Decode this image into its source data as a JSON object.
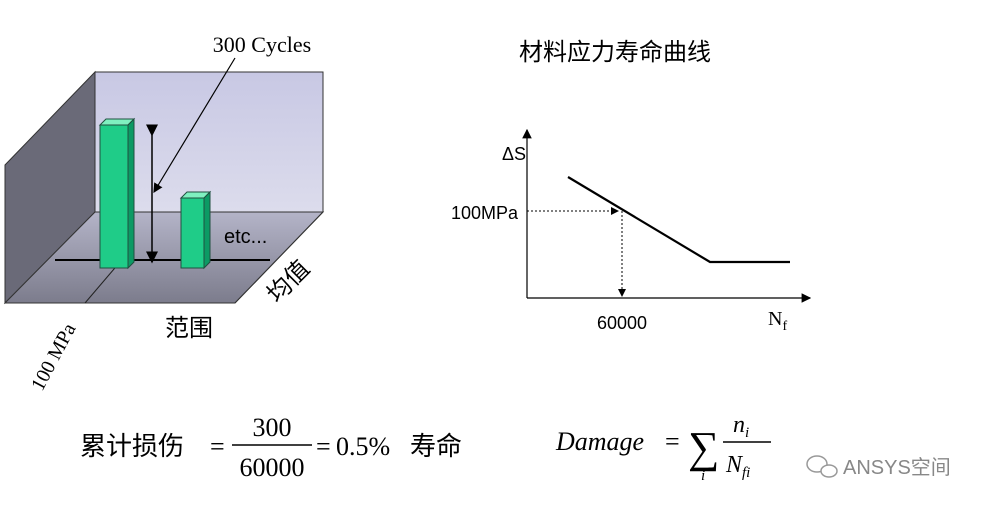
{
  "histogram3d": {
    "annotation": "300 Cycles",
    "etc": "etc...",
    "axis_range": "100 MPa",
    "label_range": "范围",
    "label_mean": "均值"
  },
  "sn_curve": {
    "title": "材料应力寿命曲线",
    "y_label": "ΔS",
    "x_label": "N",
    "x_label_sub": "f",
    "stress_label": "100MPa",
    "cycles_label": "60000"
  },
  "formula1": {
    "label": "累计损伤",
    "equals": "=",
    "numerator": "300",
    "denominator": "60000",
    "result": "0.5%",
    "suffix": "寿命"
  },
  "formula2": {
    "lhs": "Damage",
    "equals": "=",
    "sum": "∑",
    "index": "i",
    "numerator": "n",
    "numerator_sub": "i",
    "denominator": "N",
    "denominator_sub": "fi"
  },
  "watermark": "ANSYS空间"
}
